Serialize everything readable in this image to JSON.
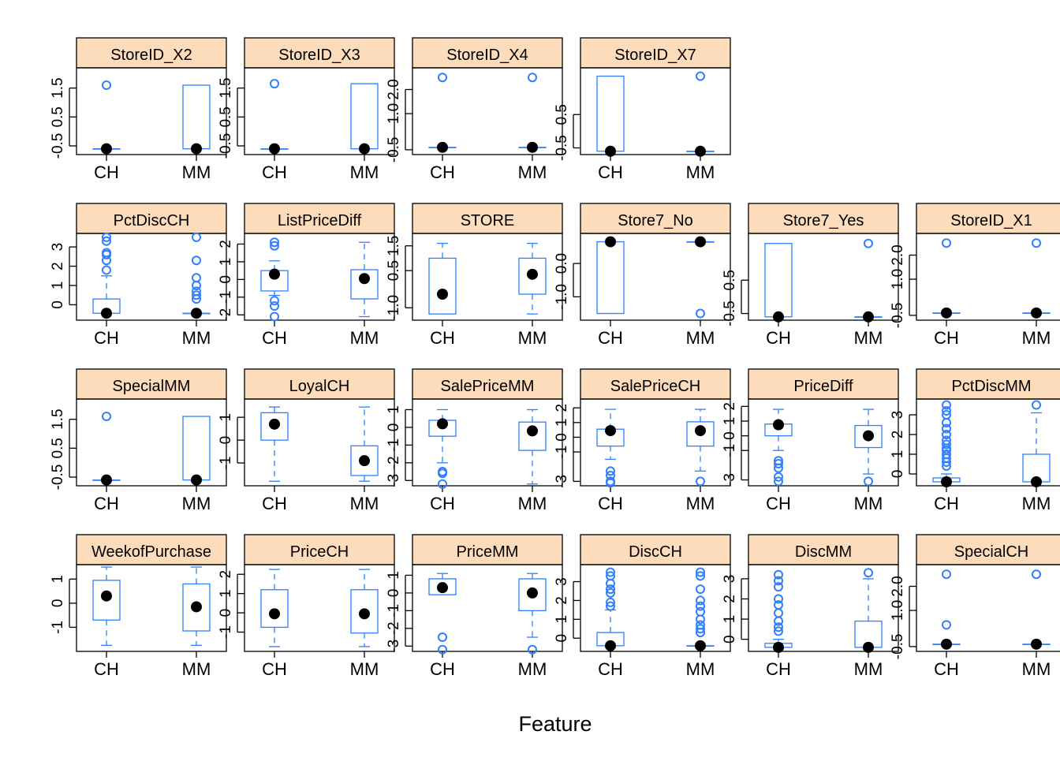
{
  "chart_data": {
    "type": "boxplot",
    "xlabel": "Feature",
    "categories": [
      "CH",
      "MM"
    ],
    "colors": {
      "box": "#2f7fff",
      "strip": "#fddcbc",
      "median": "#000000",
      "frame": "#000000"
    },
    "panels": [
      {
        "name": "StoreID_X2",
        "row": 0,
        "col": 0,
        "ylim": [
          -0.8,
          2.2
        ],
        "ticks": [
          -0.5,
          0.5,
          1.5
        ],
        "tick_labels": [
          "-0.5",
          "0.5",
          "1.5"
        ],
        "groups": [
          {
            "category": "CH",
            "q1": -0.6,
            "median": -0.6,
            "q3": -0.6,
            "lower": -0.6,
            "upper": -0.6,
            "outliers": [
              1.6
            ]
          },
          {
            "category": "MM",
            "q1": -0.6,
            "median": -0.6,
            "q3": 1.6,
            "lower": -0.6,
            "upper": 1.6,
            "outliers": []
          }
        ]
      },
      {
        "name": "StoreID_X3",
        "row": 0,
        "col": 1,
        "ylim": [
          -0.8,
          2.2
        ],
        "ticks": [
          -0.5,
          0.5,
          1.5
        ],
        "tick_labels": [
          "-0.5",
          "0.5",
          "1.5"
        ],
        "groups": [
          {
            "category": "CH",
            "q1": -0.6,
            "median": -0.6,
            "q3": -0.6,
            "lower": -0.6,
            "upper": -0.6,
            "outliers": [
              1.65
            ]
          },
          {
            "category": "MM",
            "q1": -0.6,
            "median": -0.6,
            "q3": 1.65,
            "lower": -0.6,
            "upper": 1.65,
            "outliers": []
          }
        ]
      },
      {
        "name": "StoreID_X4",
        "row": 0,
        "col": 2,
        "ylim": [
          -0.7,
          2.9
        ],
        "ticks": [
          -0.5,
          1.0,
          2.0
        ],
        "tick_labels": [
          "-0.5",
          "1.0",
          "2.0"
        ],
        "groups": [
          {
            "category": "CH",
            "q1": -0.4,
            "median": -0.4,
            "q3": -0.4,
            "lower": -0.4,
            "upper": -0.4,
            "outliers": [
              2.5
            ]
          },
          {
            "category": "MM",
            "q1": -0.4,
            "median": -0.4,
            "q3": -0.4,
            "lower": -0.4,
            "upper": -0.4,
            "outliers": [
              2.5
            ]
          }
        ]
      },
      {
        "name": "StoreID_X7",
        "row": 0,
        "col": 3,
        "ylim": [
          -0.7,
          1.9
        ],
        "ticks": [
          -0.5,
          0.5
        ],
        "tick_labels": [
          "-0.5",
          "0.5"
        ],
        "groups": [
          {
            "category": "CH",
            "q1": -0.6,
            "median": -0.6,
            "q3": 1.65,
            "lower": -0.6,
            "upper": 1.65,
            "outliers": []
          },
          {
            "category": "MM",
            "q1": -0.6,
            "median": -0.6,
            "q3": -0.6,
            "lower": -0.6,
            "upper": -0.6,
            "outliers": [
              1.65
            ]
          }
        ]
      },
      {
        "name": "PctDiscCH",
        "row": 1,
        "col": 0,
        "ylim": [
          -0.8,
          3.7
        ],
        "ticks": [
          0,
          1,
          2,
          3
        ],
        "tick_labels": [
          "0",
          "1",
          "2",
          "3"
        ],
        "groups": [
          {
            "category": "CH",
            "q1": -0.44,
            "median": -0.44,
            "q3": 0.3,
            "lower": -0.44,
            "upper": 1.5,
            "outliers": [
              1.8,
              2.3,
              2.6,
              2.7,
              3.3,
              3.5
            ]
          },
          {
            "category": "MM",
            "q1": -0.44,
            "median": -0.44,
            "q3": -0.44,
            "lower": -0.44,
            "upper": -0.44,
            "outliers": [
              0.3,
              0.5,
              0.7,
              1.0,
              1.4,
              2.3,
              3.5
            ]
          }
        ]
      },
      {
        "name": "ListPriceDiff",
        "row": 1,
        "col": 1,
        "ylim": [
          -2.3,
          2.6
        ],
        "ticks": [
          -2,
          -1,
          0,
          1,
          2
        ],
        "tick_labels": [
          "-2",
          "-1",
          "0",
          "1",
          "2"
        ],
        "groups": [
          {
            "category": "CH",
            "q1": -0.65,
            "median": 0.3,
            "q3": 0.5,
            "lower": -0.9,
            "upper": 1.05,
            "outliers": [
              -1.2,
              -1.5,
              -2.1,
              1.9,
              2.1
            ]
          },
          {
            "category": "MM",
            "q1": -1.1,
            "median": 0.05,
            "q3": 0.55,
            "lower": -2.1,
            "upper": 2.1,
            "outliers": []
          }
        ]
      },
      {
        "name": "STORE",
        "row": 1,
        "col": 2,
        "ylim": [
          -1.5,
          2.0
        ],
        "ticks": [
          -1.0,
          0.5,
          1.5
        ],
        "tick_labels": [
          "-1.0",
          "0.5",
          "1.5"
        ],
        "groups": [
          {
            "category": "CH",
            "q1": -1.25,
            "median": -0.45,
            "q3": 1.0,
            "lower": -1.25,
            "upper": 1.6,
            "outliers": []
          },
          {
            "category": "MM",
            "q1": -0.45,
            "median": 0.35,
            "q3": 1.0,
            "lower": -1.25,
            "upper": 1.6,
            "outliers": []
          }
        ]
      },
      {
        "name": "Store7_No",
        "row": 1,
        "col": 3,
        "ylim": [
          -1.7,
          0.9
        ],
        "ticks": [
          -1.0,
          0.0
        ],
        "tick_labels": [
          "-1.0",
          "0.0"
        ],
        "groups": [
          {
            "category": "CH",
            "q1": -1.5,
            "median": 0.65,
            "q3": 0.65,
            "lower": -1.5,
            "upper": 0.65,
            "outliers": []
          },
          {
            "category": "MM",
            "q1": 0.65,
            "median": 0.65,
            "q3": 0.65,
            "lower": 0.65,
            "upper": 0.65,
            "outliers": [
              -1.5
            ]
          }
        ]
      },
      {
        "name": "Store7_Yes",
        "row": 1,
        "col": 4,
        "ylim": [
          -0.7,
          1.9
        ],
        "ticks": [
          -0.5,
          0.5
        ],
        "tick_labels": [
          "-0.5",
          "0.5"
        ],
        "groups": [
          {
            "category": "CH",
            "q1": -0.6,
            "median": -0.6,
            "q3": 1.6,
            "lower": -0.6,
            "upper": 1.6,
            "outliers": []
          },
          {
            "category": "MM",
            "q1": -0.6,
            "median": -0.6,
            "q3": -0.6,
            "lower": -0.6,
            "upper": -0.6,
            "outliers": [
              1.6
            ]
          }
        ]
      },
      {
        "name": "StoreID_X1",
        "row": 1,
        "col": 5,
        "ylim": [
          -0.7,
          2.9
        ],
        "ticks": [
          -0.5,
          1.0,
          2.0
        ],
        "tick_labels": [
          "-0.5",
          "1.0",
          "2.0"
        ],
        "groups": [
          {
            "category": "CH",
            "q1": -0.4,
            "median": -0.4,
            "q3": -0.4,
            "lower": -0.4,
            "upper": -0.4,
            "outliers": [
              2.5
            ]
          },
          {
            "category": "MM",
            "q1": -0.4,
            "median": -0.4,
            "q3": -0.4,
            "lower": -0.4,
            "upper": -0.4,
            "outliers": [
              2.5
            ]
          }
        ]
      },
      {
        "name": "SpecialMM",
        "row": 2,
        "col": 0,
        "ylim": [
          -0.8,
          2.2
        ],
        "ticks": [
          -0.5,
          0.5,
          1.5
        ],
        "tick_labels": [
          "-0.5",
          "0.5",
          "1.5"
        ],
        "groups": [
          {
            "category": "CH",
            "q1": -0.6,
            "median": -0.6,
            "q3": -0.6,
            "lower": -0.6,
            "upper": -0.6,
            "outliers": [
              1.6
            ]
          },
          {
            "category": "MM",
            "q1": -0.6,
            "median": -0.6,
            "q3": 1.6,
            "lower": -0.6,
            "upper": 1.6,
            "outliers": []
          }
        ]
      },
      {
        "name": "LoyalCH",
        "row": 2,
        "col": 1,
        "ylim": [
          -2.0,
          1.8
        ],
        "ticks": [
          -1,
          0,
          1
        ],
        "tick_labels": [
          "-1",
          "0",
          "1"
        ],
        "groups": [
          {
            "category": "CH",
            "q1": 0.0,
            "median": 0.7,
            "q3": 1.2,
            "lower": -1.8,
            "upper": 1.45,
            "outliers": []
          },
          {
            "category": "MM",
            "q1": -1.55,
            "median": -0.9,
            "q3": -0.25,
            "lower": -1.8,
            "upper": 1.45,
            "outliers": []
          }
        ]
      },
      {
        "name": "SalePriceMM",
        "row": 2,
        "col": 2,
        "ylim": [
          -3.3,
          1.6
        ],
        "ticks": [
          -3,
          -2,
          -1,
          0,
          1
        ],
        "tick_labels": [
          "-3",
          "-2",
          "-1",
          "0",
          "1"
        ],
        "groups": [
          {
            "category": "CH",
            "q1": -0.5,
            "median": 0.2,
            "q3": 0.4,
            "lower": -2.0,
            "upper": 1.0,
            "outliers": [
              -2.5,
              -2.6,
              -3.2
            ]
          },
          {
            "category": "MM",
            "q1": -1.3,
            "median": -0.2,
            "q3": 0.3,
            "lower": -3.2,
            "upper": 1.0,
            "outliers": []
          }
        ]
      },
      {
        "name": "SalePriceCH",
        "row": 2,
        "col": 3,
        "ylim": [
          -3.3,
          2.6
        ],
        "ticks": [
          -3,
          -1,
          0,
          1,
          2
        ],
        "tick_labels": [
          "-3",
          "-1",
          "0",
          "1",
          "2"
        ],
        "groups": [
          {
            "category": "CH",
            "q1": -0.6,
            "median": 0.45,
            "q3": 0.55,
            "lower": -1.5,
            "upper": 1.9,
            "outliers": [
              -2.3,
              -2.6,
              -3.0,
              -3.1
            ]
          },
          {
            "category": "MM",
            "q1": -0.6,
            "median": 0.45,
            "q3": 1.05,
            "lower": -2.3,
            "upper": 1.9,
            "outliers": [
              -3.0
            ]
          }
        ]
      },
      {
        "name": "PriceDiff",
        "row": 2,
        "col": 4,
        "ylim": [
          -3.4,
          2.5
        ],
        "ticks": [
          -3,
          -1,
          0,
          1,
          2
        ],
        "tick_labels": [
          "-3",
          "-1",
          "0",
          "1",
          "2"
        ],
        "groups": [
          {
            "category": "CH",
            "q1": 0.0,
            "median": 0.75,
            "q3": 0.8,
            "lower": -1.0,
            "upper": 1.8,
            "outliers": [
              -1.7,
              -1.9,
              -2.2,
              -2.8,
              -3.1
            ]
          },
          {
            "category": "MM",
            "q1": -0.8,
            "median": 0.0,
            "q3": 0.7,
            "lower": -2.6,
            "upper": 1.8,
            "outliers": [
              -3.1
            ]
          }
        ]
      },
      {
        "name": "PctDiscMM",
        "row": 2,
        "col": 5,
        "ylim": [
          -0.6,
          3.8
        ],
        "ticks": [
          0,
          1,
          2,
          3
        ],
        "tick_labels": [
          "0",
          "1",
          "2",
          "3"
        ],
        "groups": [
          {
            "category": "CH",
            "q1": -0.4,
            "median": -0.4,
            "q3": -0.2,
            "lower": -0.4,
            "upper": 0.0,
            "outliers": [
              0.4,
              0.6,
              0.8,
              1.0,
              1.2,
              1.3,
              1.5,
              1.7,
              2.0,
              2.3,
              2.6,
              3.0,
              3.2,
              3.5
            ]
          },
          {
            "category": "MM",
            "q1": -0.4,
            "median": -0.4,
            "q3": 1.0,
            "lower": -0.4,
            "upper": 3.1,
            "outliers": [
              3.5
            ]
          }
        ]
      },
      {
        "name": "WeekofPurchase",
        "row": 3,
        "col": 0,
        "ylim": [
          -2.0,
          1.6
        ],
        "ticks": [
          -1,
          0,
          1
        ],
        "tick_labels": [
          "-1",
          "0",
          "1"
        ],
        "groups": [
          {
            "category": "CH",
            "q1": -0.7,
            "median": 0.3,
            "q3": 0.95,
            "lower": -1.75,
            "upper": 1.5,
            "outliers": []
          },
          {
            "category": "MM",
            "q1": -1.15,
            "median": -0.15,
            "q3": 0.8,
            "lower": -1.75,
            "upper": 1.5,
            "outliers": []
          }
        ]
      },
      {
        "name": "PriceCH",
        "row": 3,
        "col": 1,
        "ylim": [
          -2.0,
          2.5
        ],
        "ticks": [
          -1,
          0,
          1,
          2
        ],
        "tick_labels": [
          "-1",
          "0",
          "1",
          "2"
        ],
        "groups": [
          {
            "category": "CH",
            "q1": -0.75,
            "median": -0.05,
            "q3": 1.2,
            "lower": -1.75,
            "upper": 2.25,
            "outliers": []
          },
          {
            "category": "MM",
            "q1": -1.05,
            "median": -0.05,
            "q3": 1.2,
            "lower": -1.75,
            "upper": 2.25,
            "outliers": []
          }
        ]
      },
      {
        "name": "PriceMM",
        "row": 3,
        "col": 2,
        "ylim": [
          -3.3,
          1.6
        ],
        "ticks": [
          -3,
          -2,
          -1,
          0,
          1
        ],
        "tick_labels": [
          "-3",
          "-2",
          "-1",
          "0",
          "1"
        ],
        "groups": [
          {
            "category": "CH",
            "q1": -0.1,
            "median": 0.3,
            "q3": 0.8,
            "lower": -0.1,
            "upper": 1.1,
            "outliers": [
              -2.5,
              -3.2
            ]
          },
          {
            "category": "MM",
            "q1": -1.0,
            "median": 0.0,
            "q3": 0.8,
            "lower": -2.5,
            "upper": 1.1,
            "outliers": [
              -3.2
            ]
          }
        ]
      },
      {
        "name": "DiscCH",
        "row": 3,
        "col": 3,
        "ylim": [
          -0.7,
          3.9
        ],
        "ticks": [
          0,
          1,
          2,
          3
        ],
        "tick_labels": [
          "0",
          "1",
          "2",
          "3"
        ],
        "groups": [
          {
            "category": "CH",
            "q1": -0.4,
            "median": -0.4,
            "q3": 0.3,
            "lower": -0.4,
            "upper": 1.5,
            "outliers": [
              1.7,
              1.9,
              2.4,
              2.6,
              2.9,
              3.3,
              3.5
            ]
          },
          {
            "category": "MM",
            "q1": -0.4,
            "median": -0.4,
            "q3": -0.4,
            "lower": -0.4,
            "upper": -0.4,
            "outliers": [
              0.3,
              0.5,
              0.7,
              1.0,
              1.4,
              1.7,
              2.0,
              2.6,
              3.3,
              3.5
            ]
          }
        ]
      },
      {
        "name": "DiscMM",
        "row": 3,
        "col": 4,
        "ylim": [
          -0.6,
          3.7
        ],
        "ticks": [
          0,
          1,
          2,
          3
        ],
        "tick_labels": [
          "0",
          "1",
          "2",
          "3"
        ],
        "groups": [
          {
            "category": "CH",
            "q1": -0.4,
            "median": -0.4,
            "q3": -0.2,
            "lower": -0.4,
            "upper": 0.0,
            "outliers": [
              0.4,
              0.6,
              0.9,
              1.3,
              1.7,
              2.0,
              2.6,
              2.9,
              3.2
            ]
          },
          {
            "category": "MM",
            "q1": -0.4,
            "median": -0.4,
            "q3": 0.9,
            "lower": -0.4,
            "upper": 3.0,
            "outliers": [
              3.3
            ]
          }
        ]
      },
      {
        "name": "SpecialCH",
        "row": 3,
        "col": 5,
        "ylim": [
          -0.7,
          2.9
        ],
        "ticks": [
          -0.5,
          1.0,
          2.0
        ],
        "tick_labels": [
          "-0.5",
          "1.0",
          "2.0"
        ],
        "groups": [
          {
            "category": "CH",
            "q1": -0.4,
            "median": -0.4,
            "q3": -0.4,
            "lower": -0.4,
            "upper": -0.4,
            "outliers": [
              0.4,
              2.5
            ]
          },
          {
            "category": "MM",
            "q1": -0.4,
            "median": -0.4,
            "q3": -0.4,
            "lower": -0.4,
            "upper": -0.4,
            "outliers": [
              2.5
            ]
          }
        ]
      }
    ]
  }
}
